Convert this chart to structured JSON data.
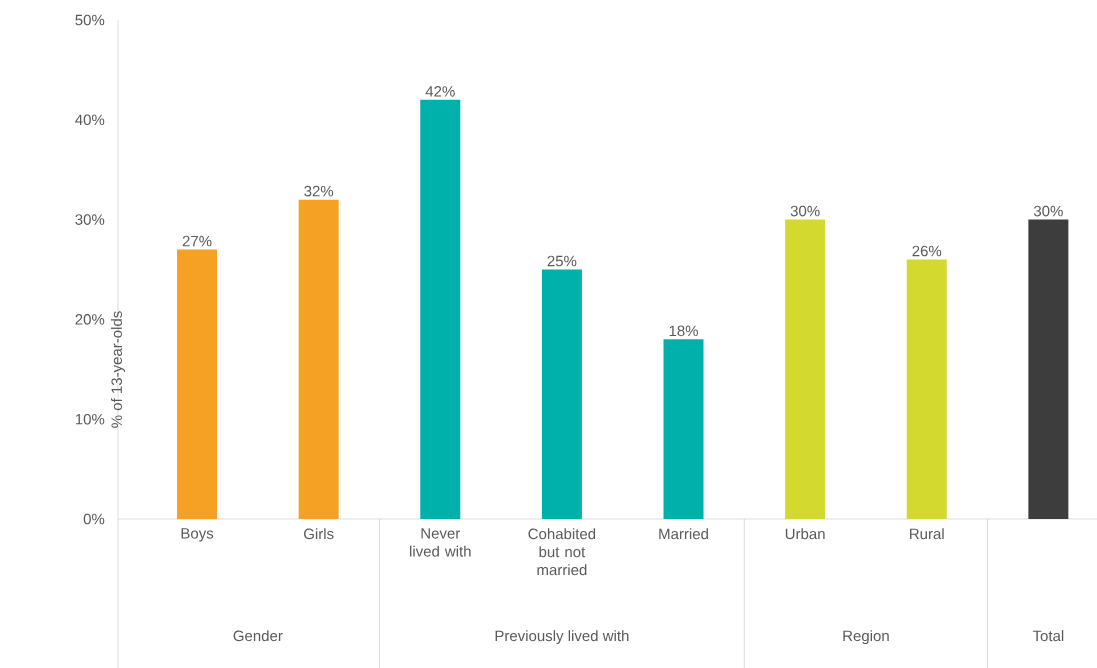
{
  "chart_data": {
    "type": "bar",
    "ylabel": "% of 13-year-olds",
    "categories": [
      "Boys",
      "Girls",
      "Never lived with",
      "Cohabited but not married",
      "Married",
      "Urban",
      "Rural",
      null
    ],
    "values": [
      27,
      32,
      42,
      25,
      18,
      30,
      26,
      30
    ],
    "value_labels": [
      "27%",
      "32%",
      "42%",
      "25%",
      "18%",
      "30%",
      "26%",
      "30%"
    ],
    "colors": [
      "#f5a123",
      "#f5a123",
      "#00b0aa",
      "#00b0aa",
      "#00b0aa",
      "#d4d92f",
      "#d4d92f",
      "#3d3d3d"
    ],
    "annotations": [
      "Gender",
      "Previously lived with",
      "Region",
      "Total"
    ],
    "ylim": [
      0,
      50
    ],
    "yticks": [
      {
        "value": 0,
        "label": "0%"
      },
      {
        "value": 10,
        "label": "10%"
      },
      {
        "value": 20,
        "label": "20%"
      },
      {
        "value": 30,
        "label": "30%"
      },
      {
        "value": 40,
        "label": "40%"
      },
      {
        "value": 50,
        "label": "50%"
      }
    ],
    "grid": false
  }
}
